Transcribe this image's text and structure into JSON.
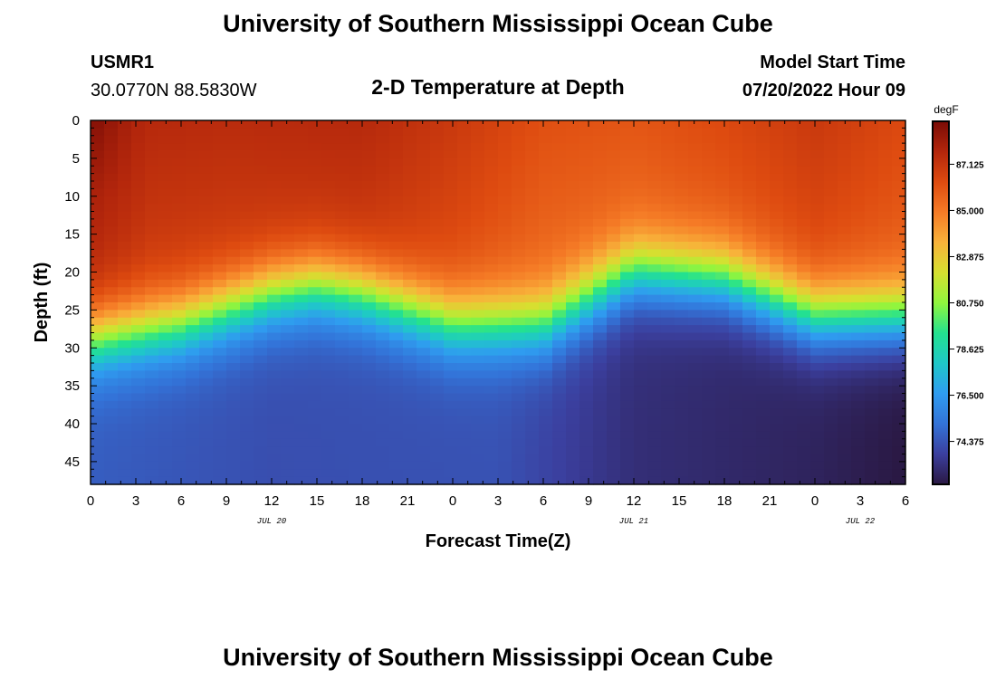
{
  "header": {
    "title": "University of Southern Mississippi Ocean Cube",
    "station": "USMR1",
    "coords": "30.0770N  88.5830W",
    "plot_title": "2-D Temperature at Depth",
    "model_start_label": "Model Start Time",
    "model_start_value": "07/20/2022 Hour 09"
  },
  "footer": {
    "title": "University of Southern Mississippi Ocean Cube"
  },
  "colors": {
    "scale": [
      "#2a1842",
      "#3b3f9e",
      "#3373d8",
      "#2f9cf0",
      "#1fc8c8",
      "#23e28f",
      "#90f53e",
      "#d6e030",
      "#f8b23a",
      "#f57b26",
      "#de4b10",
      "#b3260c",
      "#7a0b05"
    ]
  },
  "chart_data": {
    "type": "heatmap",
    "title": "2-D Temperature at Depth",
    "xlabel": "Forecast Time(Z)",
    "ylabel": "Depth (ft)",
    "x_ticks": [
      "0",
      "3",
      "6",
      "9",
      "12",
      "15",
      "18",
      "21",
      "0",
      "3",
      "6",
      "9",
      "12",
      "15",
      "18",
      "21",
      "0",
      "3",
      "6"
    ],
    "x_range_hours": [
      0,
      54
    ],
    "date_labels": [
      {
        "label": "JUL 20",
        "hour": 12
      },
      {
        "label": "JUL 21",
        "hour": 36
      },
      {
        "label": "JUL 22",
        "hour": 51
      }
    ],
    "y_ticks": [
      0,
      5,
      10,
      15,
      20,
      25,
      30,
      35,
      40,
      45
    ],
    "y_range_ft": [
      0,
      48
    ],
    "y_inverted": true,
    "colorbar": {
      "unit": "degF",
      "range": [
        72.4,
        89.1
      ],
      "tick_values": [
        87.125,
        85.0,
        82.875,
        80.75,
        78.625,
        76.5,
        74.375
      ],
      "tick_labels": [
        "87.125",
        "85.000",
        "82.875",
        "80.750",
        "78.625",
        "76.500",
        "74.375"
      ]
    },
    "thermocline_depth_ft_by_hour": [
      [
        0,
        29
      ],
      [
        6,
        27
      ],
      [
        12,
        23
      ],
      [
        15,
        22
      ],
      [
        18,
        23
      ],
      [
        24,
        27
      ],
      [
        30,
        27
      ],
      [
        36,
        20
      ],
      [
        42,
        21
      ],
      [
        48,
        26
      ],
      [
        54,
        26
      ]
    ],
    "surface_temp_degF_by_hour": [
      [
        0,
        88.3
      ],
      [
        4,
        87.6
      ],
      [
        9,
        87.5
      ],
      [
        18,
        87.6
      ],
      [
        24,
        87.0
      ],
      [
        30,
        86.2
      ],
      [
        36,
        86.0
      ],
      [
        42,
        86.4
      ],
      [
        48,
        87.0
      ],
      [
        54,
        86.4
      ]
    ],
    "bottom_temp_degF_by_hour": [
      [
        0,
        74.6
      ],
      [
        12,
        74.2
      ],
      [
        27,
        74.3
      ],
      [
        36,
        73.2
      ],
      [
        48,
        72.8
      ],
      [
        54,
        72.4
      ]
    ],
    "gradient_width_ft": 6
  }
}
